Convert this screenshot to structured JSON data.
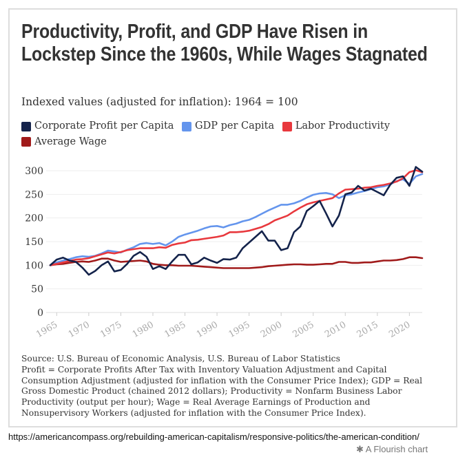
{
  "title": "Productivity, Profit, and GDP Have Risen in Lockstep Since the 1960s, While Wages Stagnated",
  "subtitle": "Indexed values (adjusted for inflation): 1964 = 100",
  "notes": {
    "source": "Source: U.S. Bureau of Economic Analysis, U.S. Bureau of Labor Statistics",
    "definitions": "Profit = Corporate Profits After Tax with Inventory Valuation Adjustment and Capital Consumption Adjustment (adjusted for inflation with the Consumer Price Index); GDP = Real Gross Domestic Product (chained 2012 dollars); Productivity = Nonfarm Business Labor Productivity (output per hour); Wage = Real Average Earnings of Production and Nonsupervisory Workers (adjusted for inflation with the Consumer Price Index)."
  },
  "url": "https://americancompass.org/rebuilding-american-capitalism/responsive-politics/the-american-condition/",
  "flourish": "A Flourish chart",
  "chart_data": {
    "type": "line",
    "title": "Productivity, Profit, and GDP Have Risen in Lockstep Since the 1960s, While Wages Stagnated",
    "ylim": [
      0,
      300
    ],
    "xlim": [
      1964,
      2022
    ],
    "yticks": [
      "0",
      "50",
      "100",
      "150",
      "200",
      "250",
      "300"
    ],
    "xticks": [
      "1965",
      "1970",
      "1975",
      "1980",
      "1985",
      "1990",
      "1995",
      "2000",
      "2005",
      "2010",
      "2015",
      "2020"
    ],
    "legend_placement": "top-left",
    "grid": true,
    "x_start": 1964,
    "series": [
      {
        "name": "Corporate Profit per Capita",
        "color": "#14234b",
        "values": [
          100,
          112,
          116,
          110,
          107,
          95,
          80,
          88,
          100,
          108,
          87,
          90,
          103,
          120,
          128,
          118,
          92,
          98,
          92,
          108,
          122,
          122,
          102,
          106,
          116,
          110,
          105,
          113,
          112,
          116,
          136,
          148,
          160,
          172,
          152,
          152,
          132,
          136,
          170,
          182,
          215,
          225,
          236,
          210,
          182,
          205,
          250,
          254,
          268,
          258,
          262,
          255,
          248,
          270,
          285,
          288,
          268,
          308,
          298
        ]
      },
      {
        "name": "GDP per Capita",
        "color": "#6495ed",
        "values": [
          100,
          106,
          110,
          113,
          117,
          119,
          118,
          120,
          125,
          131,
          129,
          127,
          133,
          138,
          145,
          147,
          145,
          147,
          142,
          150,
          160,
          165,
          169,
          173,
          178,
          182,
          183,
          180,
          185,
          188,
          193,
          196,
          202,
          209,
          216,
          222,
          228,
          228,
          231,
          236,
          243,
          249,
          252,
          253,
          250,
          242,
          248,
          250,
          254,
          257,
          261,
          265,
          267,
          271,
          278,
          282,
          272,
          288,
          293
        ]
      },
      {
        "name": "Labor Productivity",
        "color": "#e8383d",
        "values": [
          100,
          103,
          106,
          109,
          112,
          113,
          115,
          119,
          123,
          127,
          125,
          128,
          132,
          134,
          136,
          136,
          136,
          138,
          137,
          143,
          146,
          148,
          153,
          154,
          156,
          158,
          160,
          163,
          170,
          170,
          171,
          173,
          177,
          181,
          187,
          195,
          200,
          205,
          214,
          222,
          229,
          233,
          236,
          239,
          242,
          252,
          260,
          261,
          262,
          264,
          265,
          268,
          270,
          273,
          277,
          284,
          297,
          301,
          297
        ]
      },
      {
        "name": "Average Wage",
        "color": "#a01a1a",
        "values": [
          100,
          102,
          103,
          105,
          107,
          108,
          107,
          110,
          114,
          114,
          110,
          107,
          108,
          109,
          110,
          108,
          103,
          101,
          100,
          100,
          99,
          99,
          99,
          98,
          97,
          96,
          95,
          94,
          94,
          94,
          94,
          94,
          95,
          96,
          98,
          99,
          100,
          101,
          102,
          102,
          101,
          101,
          102,
          103,
          103,
          107,
          107,
          105,
          105,
          106,
          106,
          108,
          110,
          110,
          111,
          113,
          117,
          117,
          115
        ]
      }
    ]
  }
}
